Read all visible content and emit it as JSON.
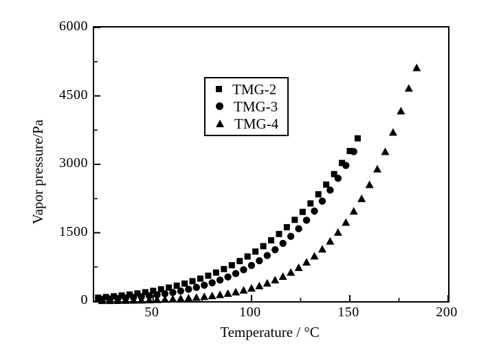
{
  "figure": {
    "background": "#ffffff",
    "axis_color": "#000000"
  },
  "chart_data": {
    "type": "scatter",
    "title": "",
    "xlabel": "Temperature / °C",
    "ylabel": "Vapor pressure/Pa",
    "xlim": [
      20,
      200
    ],
    "ylim": [
      0,
      6000
    ],
    "grid": false,
    "legend_position": "upper-left-inside",
    "marker_color": "#000000",
    "x_major_ticks": [
      50,
      100,
      150,
      200
    ],
    "x_minor_ticks": [
      25,
      75,
      125,
      175
    ],
    "x_tick_labels": [
      "50",
      "100",
      "150",
      "200"
    ],
    "y_major_ticks": [
      0,
      1500,
      3000,
      4500,
      6000
    ],
    "y_minor_ticks": [
      750,
      2250,
      3750,
      5250
    ],
    "y_tick_labels": [
      "0",
      "1500",
      "3000",
      "4500",
      "6000"
    ],
    "series": [
      {
        "name": "TMG-2",
        "marker": "square",
        "color": "#000000",
        "points": [
          [
            22,
            77
          ],
          [
            26,
            91
          ],
          [
            30,
            107
          ],
          [
            34,
            125
          ],
          [
            38,
            146
          ],
          [
            42,
            170
          ],
          [
            46,
            196
          ],
          [
            50,
            226
          ],
          [
            54,
            260
          ],
          [
            58,
            298
          ],
          [
            62,
            340
          ],
          [
            66,
            386
          ],
          [
            70,
            438
          ],
          [
            74,
            495
          ],
          [
            78,
            558
          ],
          [
            82,
            628
          ],
          [
            86,
            704
          ],
          [
            90,
            788
          ],
          [
            94,
            879
          ],
          [
            98,
            980
          ],
          [
            102,
            1088
          ],
          [
            106,
            1206
          ],
          [
            110,
            1334
          ],
          [
            114,
            1473
          ],
          [
            118,
            1622
          ],
          [
            122,
            1783
          ],
          [
            126,
            1957
          ],
          [
            130,
            2143
          ],
          [
            134,
            2343
          ],
          [
            138,
            2556
          ],
          [
            142,
            2786
          ],
          [
            146,
            3030
          ],
          [
            150,
            3292
          ],
          [
            154,
            3570
          ]
        ]
      },
      {
        "name": "TMG-3",
        "marker": "circle",
        "color": "#000000",
        "points": [
          [
            24,
            39
          ],
          [
            28,
            48
          ],
          [
            32,
            58
          ],
          [
            36,
            69
          ],
          [
            40,
            83
          ],
          [
            44,
            99
          ],
          [
            48,
            117
          ],
          [
            52,
            139
          ],
          [
            56,
            163
          ],
          [
            60,
            192
          ],
          [
            64,
            224
          ],
          [
            68,
            261
          ],
          [
            72,
            303
          ],
          [
            76,
            350
          ],
          [
            80,
            403
          ],
          [
            84,
            463
          ],
          [
            88,
            530
          ],
          [
            92,
            605
          ],
          [
            96,
            689
          ],
          [
            100,
            783
          ],
          [
            104,
            886
          ],
          [
            108,
            1001
          ],
          [
            112,
            1128
          ],
          [
            116,
            1268
          ],
          [
            120,
            1421
          ],
          [
            124,
            1589
          ],
          [
            128,
            1774
          ],
          [
            132,
            1976
          ],
          [
            136,
            2195
          ],
          [
            140,
            2435
          ],
          [
            144,
            2694
          ],
          [
            148,
            2977
          ],
          [
            152,
            3280
          ]
        ]
      },
      {
        "name": "TMG-4",
        "marker": "triangle",
        "color": "#000000",
        "points": [
          [
            24,
            5
          ],
          [
            28,
            6
          ],
          [
            32,
            8
          ],
          [
            36,
            10
          ],
          [
            40,
            13
          ],
          [
            44,
            16
          ],
          [
            48,
            21
          ],
          [
            52,
            26
          ],
          [
            56,
            33
          ],
          [
            60,
            41
          ],
          [
            64,
            50
          ],
          [
            68,
            62
          ],
          [
            72,
            76
          ],
          [
            76,
            92
          ],
          [
            80,
            112
          ],
          [
            84,
            135
          ],
          [
            88,
            163
          ],
          [
            92,
            195
          ],
          [
            96,
            233
          ],
          [
            100,
            277
          ],
          [
            104,
            329
          ],
          [
            108,
            388
          ],
          [
            112,
            457
          ],
          [
            116,
            536
          ],
          [
            120,
            626
          ],
          [
            124,
            730
          ],
          [
            128,
            848
          ],
          [
            132,
            982
          ],
          [
            136,
            1135
          ],
          [
            140,
            1308
          ],
          [
            144,
            1501
          ],
          [
            148,
            1720
          ],
          [
            152,
            1966
          ],
          [
            156,
            2241
          ],
          [
            160,
            2547
          ],
          [
            164,
            2890
          ],
          [
            168,
            3271
          ],
          [
            172,
            3695
          ],
          [
            176,
            4162
          ],
          [
            180,
            4660
          ],
          [
            184,
            5110
          ]
        ]
      }
    ]
  },
  "legend": {
    "items": [
      {
        "label": "TMG-2",
        "marker": "square"
      },
      {
        "label": "TMG-3",
        "marker": "circle"
      },
      {
        "label": "TMG-4",
        "marker": "triangle"
      }
    ]
  }
}
